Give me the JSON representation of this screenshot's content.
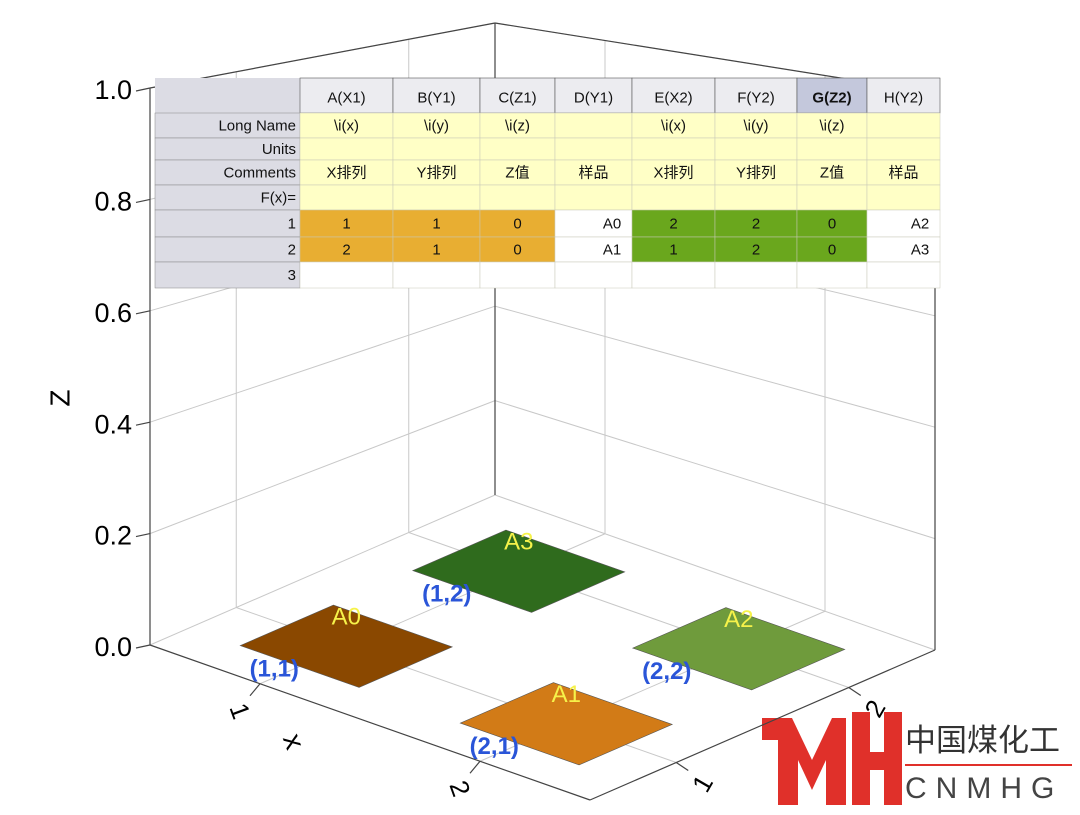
{
  "chart_data": {
    "type": "3d-tiles",
    "zlabel": "Z",
    "xlabel": "x",
    "xlim": [
      0.5,
      2.5
    ],
    "ylim": [
      0.5,
      2.5
    ],
    "zlim": [
      0,
      1
    ],
    "xticks": [
      1,
      2
    ],
    "yticks": [
      1,
      2
    ],
    "zticks": [
      {
        "value": 0,
        "label": "0.0"
      },
      {
        "value": 0.2,
        "label": "0.2"
      },
      {
        "value": 0.4,
        "label": "0.4"
      },
      {
        "value": 0.6,
        "label": "0.6"
      },
      {
        "value": 0.8,
        "label": "0.8"
      },
      {
        "value": 1,
        "label": "1.0"
      }
    ],
    "grid": true,
    "points": {
      "names": [
        "A0",
        "A1",
        "A2",
        "A3"
      ],
      "x": [
        1,
        2,
        2,
        1
      ],
      "y": [
        1,
        1,
        2,
        2
      ],
      "z": [
        0,
        0,
        0,
        0
      ],
      "colors": [
        "#8a4800",
        "#d27b17",
        "#6f9b3c",
        "#2f6b1d"
      ],
      "point_labels": [
        "(1,1)",
        "(2,1)",
        "(2,2)",
        "(1,2)"
      ]
    }
  },
  "table": {
    "columns": [
      "A(X1)",
      "B(Y1)",
      "C(Z1)",
      "D(Y1)",
      "E(X2)",
      "F(Y2)",
      "G(Z2)",
      "H(Y2)"
    ],
    "row_labels": [
      "Long Name",
      "Units",
      "Comments",
      "F(x)=",
      "1",
      "2",
      "3"
    ],
    "rows": [
      [
        "\\i(x)",
        "\\i(y)",
        "\\i(z)",
        null,
        "\\i(x)",
        "\\i(y)",
        "\\i(z)",
        null
      ],
      [
        null,
        null,
        null,
        null,
        null,
        null,
        null,
        null
      ],
      [
        "X排列",
        "Y排列",
        "Z值",
        "样品",
        "X排列",
        "Y排列",
        "Z值",
        "样品"
      ],
      [
        null,
        null,
        null,
        null,
        null,
        null,
        null,
        null
      ],
      [
        1,
        1,
        0,
        "A0",
        2,
        2,
        0,
        "A2"
      ],
      [
        2,
        1,
        0,
        "A1",
        1,
        2,
        0,
        "A3"
      ],
      [
        null,
        null,
        null,
        null,
        null,
        null,
        null,
        null
      ]
    ],
    "data_colors": [
      "#e8ae32",
      "#e8ae32",
      "#e8ae32",
      "#ffffff",
      "#6aa71d",
      "#6aa71d",
      "#6aa71d",
      "#ffffff"
    ]
  },
  "logo": {
    "cn": "中国煤化工",
    "en": "CNMHG"
  }
}
